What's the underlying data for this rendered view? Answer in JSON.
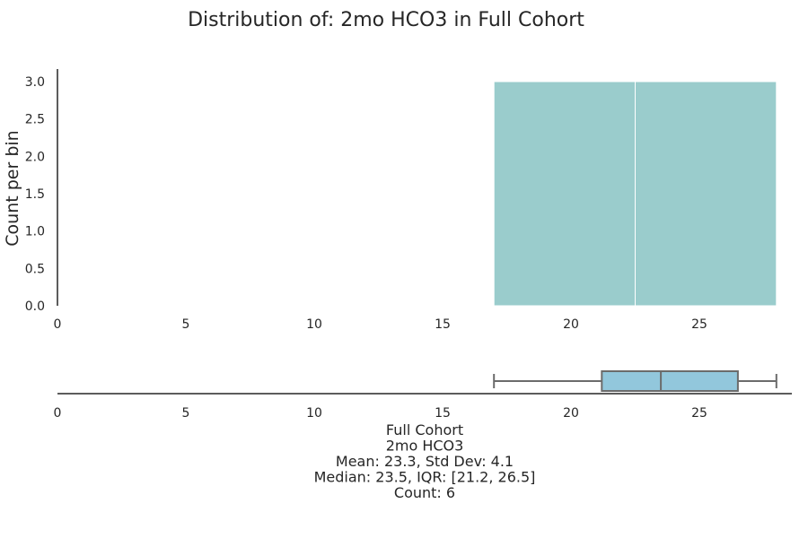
{
  "chart_data": [
    {
      "type": "histogram",
      "title": "Distribution of: 2mo HCO3 in Full Cohort",
      "ylabel": "Count per bin",
      "xlim": [
        0,
        28
      ],
      "ylim": [
        0,
        3
      ],
      "x_ticks": [
        "0",
        "5",
        "10",
        "15",
        "20",
        "25"
      ],
      "y_ticks": [
        "0.0",
        "0.5",
        "1.0",
        "1.5",
        "2.0",
        "2.5",
        "3.0"
      ],
      "bins": [
        {
          "start": 17.0,
          "end": 22.5,
          "count": 3
        },
        {
          "start": 22.5,
          "end": 28.0,
          "count": 3
        }
      ],
      "bar_color": "#9acccc"
    },
    {
      "type": "boxplot",
      "x_ticks": [
        "0",
        "5",
        "10",
        "15",
        "20",
        "25"
      ],
      "whisker_low": 17.0,
      "q1": 21.2,
      "median": 23.5,
      "q3": 26.5,
      "whisker_high": 28.0,
      "box_color": "#92c7dc",
      "caption_lines": [
        "Full Cohort",
        "2mo HCO3",
        "Mean: 23.3, Std Dev: 4.1",
        "Median: 23.5, IQR: [21.2, 26.5]",
        "Count: 6"
      ]
    }
  ]
}
